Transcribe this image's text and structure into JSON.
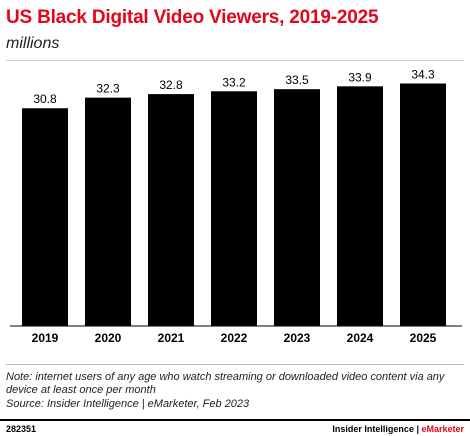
{
  "chart_data": {
    "type": "bar",
    "title": "US Black Digital Video Viewers, 2019-2025",
    "subtitle": "millions",
    "categories": [
      "2019",
      "2020",
      "2021",
      "2022",
      "2023",
      "2024",
      "2025"
    ],
    "values": [
      30.8,
      32.3,
      32.8,
      33.2,
      33.5,
      33.9,
      34.3
    ],
    "data_labels": [
      "30.8",
      "32.3",
      "32.8",
      "33.2",
      "33.5",
      "33.9",
      "34.3"
    ],
    "xlabel": "",
    "ylabel": "",
    "grid": false,
    "bar_color": "#000000"
  },
  "note": "Note: internet users of any age who watch streaming or downloaded video content via any device at least once per month",
  "source": "Source: Insider Intelligence | eMarketer, Feb 2023",
  "footer": {
    "chart_id": "282351",
    "brand_main": "Insider Intelligence | ",
    "brand_accent": "eMarketer"
  },
  "colors": {
    "title": "#e3051b",
    "accent": "#e3051b"
  }
}
